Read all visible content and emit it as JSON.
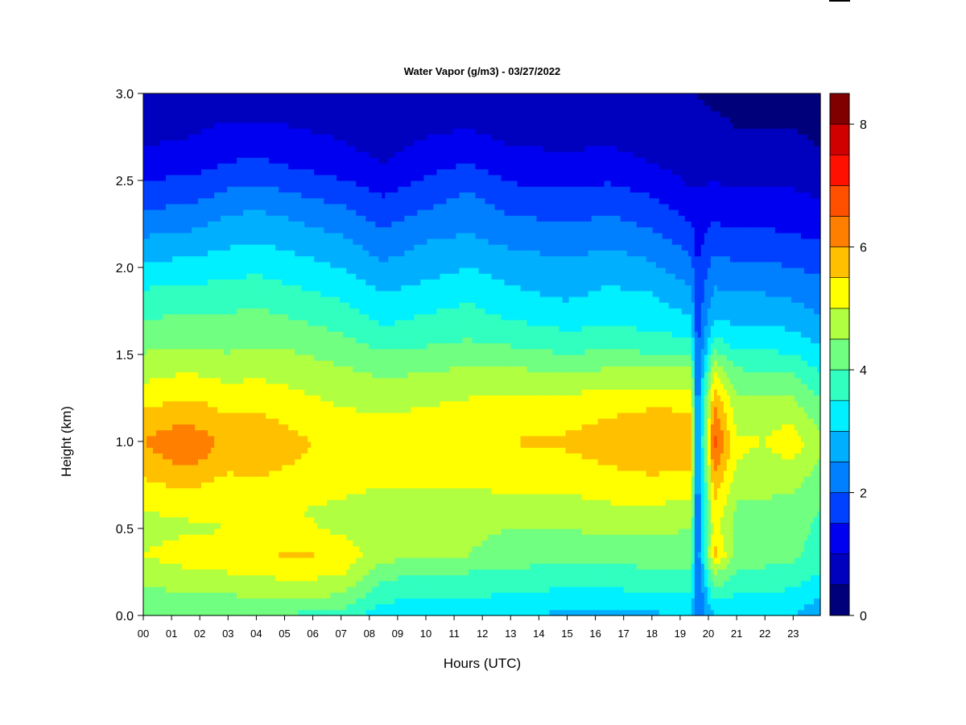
{
  "chart_data": {
    "type": "heatmap",
    "title": "Water Vapor (g/m3) - 03/27/2022",
    "xlabel": "Hours (UTC)",
    "ylabel": "Height (km)",
    "x_ticks": [
      "00",
      "01",
      "02",
      "03",
      "04",
      "05",
      "06",
      "07",
      "08",
      "09",
      "10",
      "11",
      "12",
      "13",
      "14",
      "15",
      "16",
      "17",
      "18",
      "19",
      "20",
      "21",
      "22",
      "23"
    ],
    "y_ticks": [
      "0.0",
      "0.5",
      "1.0",
      "1.5",
      "2.0",
      "2.5",
      "3.0"
    ],
    "xlim": [
      0,
      23.9
    ],
    "ylim": [
      0,
      3.0
    ],
    "colorbar": {
      "ticks": [
        "0",
        "2",
        "4",
        "6",
        "8"
      ],
      "range": [
        0,
        8.5
      ],
      "levels": [
        0,
        0.5,
        1,
        1.5,
        2,
        2.5,
        3,
        3.5,
        4,
        4.5,
        5,
        5.5,
        6,
        6.5,
        7,
        7.5,
        8,
        8.5
      ],
      "colors": [
        "#00007A",
        "#0000BF",
        "#0000F0",
        "#0040FF",
        "#0080FF",
        "#00B0FF",
        "#00F0FF",
        "#30FFC0",
        "#70FF80",
        "#B0FF40",
        "#FFFF00",
        "#FFC000",
        "#FF8000",
        "#FF5000",
        "#FF1000",
        "#D00000",
        "#800000"
      ]
    },
    "profile_heights_km": [
      0.0,
      0.1,
      0.25,
      0.35,
      0.5,
      0.6,
      0.75,
      0.9,
      1.0,
      1.1,
      1.25,
      1.4,
      1.55,
      1.7,
      1.85,
      2.0,
      2.15,
      2.3,
      2.45,
      2.6,
      2.8,
      3.0
    ],
    "profiles": [
      {
        "hour": 0,
        "values": [
          4.2,
          4.3,
          4.7,
          5.0,
          4.8,
          5.0,
          5.4,
          5.8,
          6.0,
          5.8,
          5.3,
          4.8,
          4.4,
          4.0,
          3.6,
          3.1,
          2.6,
          2.1,
          1.7,
          1.2,
          0.8,
          0.6
        ]
      },
      {
        "hour": 1.6,
        "values": [
          4.2,
          4.4,
          4.9,
          5.3,
          4.9,
          5.1,
          5.6,
          6.2,
          6.5,
          6.0,
          5.5,
          5.0,
          4.5,
          4.1,
          3.7,
          3.2,
          2.7,
          2.2,
          1.7,
          1.3,
          0.9,
          0.6
        ]
      },
      {
        "hour": 3,
        "values": [
          4.0,
          4.4,
          5.0,
          5.3,
          5.0,
          5.1,
          5.3,
          5.7,
          5.8,
          5.6,
          5.3,
          4.8,
          4.4,
          4.1,
          3.7,
          3.3,
          2.9,
          2.5,
          2.0,
          1.5,
          1.1,
          0.7
        ]
      },
      {
        "hour": 4,
        "values": [
          4.0,
          4.5,
          5.1,
          5.4,
          5.0,
          5.1,
          5.4,
          5.8,
          6.0,
          5.7,
          5.3,
          4.9,
          4.5,
          4.2,
          3.8,
          3.4,
          3.0,
          2.6,
          2.1,
          1.6,
          1.1,
          0.7
        ]
      },
      {
        "hour": 5.5,
        "values": [
          3.9,
          4.5,
          5.2,
          5.6,
          5.1,
          5.0,
          5.2,
          5.5,
          5.6,
          5.4,
          5.1,
          4.8,
          4.4,
          4.0,
          3.6,
          3.2,
          2.8,
          2.4,
          1.9,
          1.4,
          1.0,
          0.7
        ]
      },
      {
        "hour": 7,
        "values": [
          3.8,
          4.4,
          5.1,
          5.3,
          4.9,
          4.9,
          5.1,
          5.3,
          5.3,
          5.2,
          4.9,
          4.6,
          4.2,
          3.8,
          3.4,
          3.0,
          2.6,
          2.2,
          1.7,
          1.2,
          0.9,
          0.6
        ]
      },
      {
        "hour": 8.5,
        "values": [
          3.1,
          3.6,
          4.2,
          4.7,
          4.7,
          4.8,
          5.0,
          5.2,
          5.2,
          5.1,
          4.8,
          4.4,
          3.9,
          3.4,
          3.0,
          2.6,
          2.2,
          1.8,
          1.4,
          1.0,
          0.7,
          0.5
        ]
      },
      {
        "hour": 10,
        "values": [
          3.2,
          3.5,
          4.0,
          4.6,
          4.6,
          4.8,
          5.0,
          5.2,
          5.3,
          5.2,
          4.9,
          4.5,
          4.0,
          3.6,
          3.2,
          2.8,
          2.5,
          2.1,
          1.7,
          1.3,
          0.9,
          0.6
        ]
      },
      {
        "hour": 11.5,
        "values": [
          3.1,
          3.5,
          4.0,
          4.5,
          4.6,
          4.8,
          5.0,
          5.3,
          5.4,
          5.3,
          5.0,
          4.6,
          4.1,
          3.7,
          3.4,
          3.0,
          2.6,
          2.3,
          2.0,
          1.5,
          1.0,
          0.7
        ]
      },
      {
        "hour": 13,
        "values": [
          3.0,
          3.4,
          3.9,
          4.3,
          4.5,
          4.8,
          5.1,
          5.4,
          5.5,
          5.4,
          5.1,
          4.6,
          4.0,
          3.5,
          3.1,
          2.8,
          2.4,
          2.0,
          1.6,
          1.2,
          0.8,
          0.6
        ]
      },
      {
        "hour": 15,
        "values": [
          2.9,
          3.3,
          3.8,
          4.2,
          4.5,
          4.8,
          5.1,
          5.4,
          5.6,
          5.4,
          5.1,
          4.5,
          3.8,
          3.3,
          2.9,
          2.6,
          2.3,
          1.9,
          1.5,
          1.1,
          0.8,
          0.5
        ]
      },
      {
        "hour": 16.5,
        "values": [
          2.8,
          3.3,
          3.8,
          4.2,
          4.6,
          4.9,
          5.2,
          5.6,
          5.9,
          5.6,
          5.2,
          4.6,
          3.9,
          3.4,
          3.1,
          2.8,
          2.4,
          2.0,
          1.6,
          1.2,
          0.8,
          0.5
        ]
      },
      {
        "hour": 18,
        "values": [
          2.9,
          3.4,
          3.9,
          4.3,
          4.6,
          4.9,
          5.3,
          5.8,
          6.0,
          5.8,
          5.3,
          4.6,
          3.8,
          3.3,
          3.0,
          2.6,
          2.2,
          1.8,
          1.4,
          1.0,
          0.7,
          0.5
        ]
      },
      {
        "hour": 19.4,
        "values": [
          3.0,
          3.4,
          3.9,
          4.2,
          4.5,
          4.8,
          5.2,
          5.7,
          5.9,
          5.7,
          5.3,
          4.6,
          3.7,
          3.1,
          2.6,
          2.2,
          1.8,
          1.4,
          1.0,
          0.8,
          0.6,
          0.5
        ]
      },
      {
        "hour": 19.6,
        "values": [
          1.9,
          1.9,
          2.0,
          2.0,
          2.0,
          2.0,
          2.0,
          2.0,
          2.0,
          2.0,
          2.0,
          1.9,
          1.8,
          1.7,
          1.6,
          1.5,
          1.3,
          1.2,
          1.0,
          0.8,
          0.6,
          0.5
        ]
      },
      {
        "hour": 20.2,
        "values": [
          3.0,
          3.6,
          4.6,
          5.7,
          5.3,
          5.4,
          5.8,
          6.4,
          6.8,
          6.4,
          5.9,
          5.0,
          3.8,
          3.0,
          2.6,
          2.2,
          1.8,
          1.4,
          1.1,
          0.8,
          0.6,
          0.4
        ]
      },
      {
        "hour": 21,
        "values": [
          3.0,
          3.4,
          4.0,
          4.3,
          4.3,
          4.4,
          4.7,
          5.0,
          5.1,
          4.9,
          4.6,
          4.1,
          3.4,
          2.9,
          2.5,
          2.1,
          1.7,
          1.3,
          1.0,
          0.7,
          0.5,
          0.4
        ]
      },
      {
        "hour": 22,
        "values": [
          3.1,
          3.4,
          3.9,
          4.2,
          4.3,
          4.4,
          4.6,
          4.9,
          5.0,
          4.9,
          4.5,
          4.0,
          3.4,
          2.9,
          2.5,
          2.1,
          1.7,
          1.3,
          1.0,
          0.7,
          0.5,
          0.3
        ]
      },
      {
        "hour": 23,
        "values": [
          3.0,
          3.3,
          3.8,
          4.1,
          4.2,
          4.3,
          4.6,
          5.0,
          5.3,
          5.0,
          4.5,
          4.0,
          3.3,
          2.8,
          2.4,
          2.0,
          1.6,
          1.3,
          1.0,
          0.7,
          0.5,
          0.3
        ]
      },
      {
        "hour": 23.9,
        "values": [
          2.6,
          3.0,
          3.5,
          3.8,
          3.9,
          4.0,
          4.2,
          4.5,
          4.6,
          4.4,
          4.0,
          3.5,
          3.0,
          2.6,
          2.2,
          1.9,
          1.5,
          1.2,
          0.9,
          0.6,
          0.4,
          0.3
        ]
      }
    ]
  }
}
